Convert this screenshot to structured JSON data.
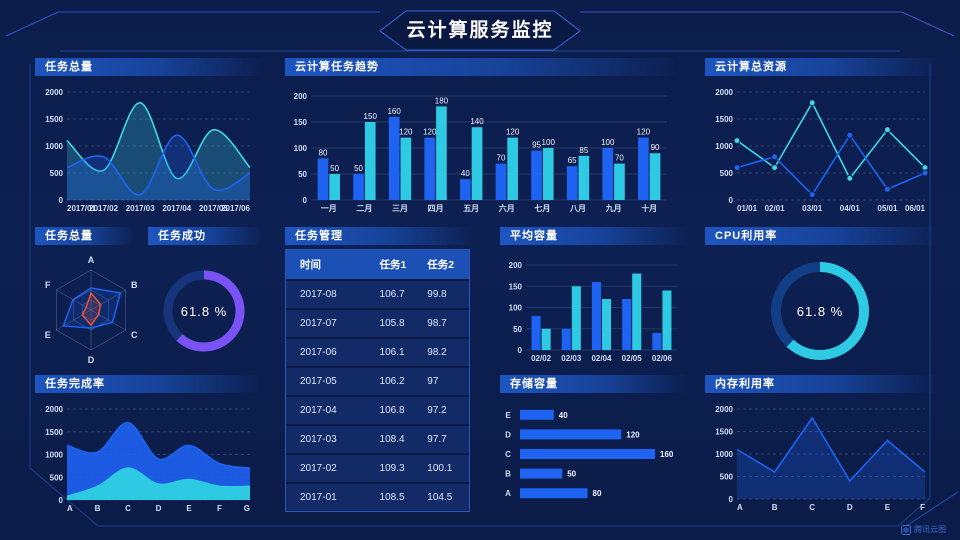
{
  "header": {
    "title": "云计算服务监控"
  },
  "watermark": {
    "label": "腾讯云图"
  },
  "colors": {
    "bg": "#0c1d4b",
    "blue": "#1e63f2",
    "cyan": "#2ec9e2",
    "line_cyan": "#3fd8e8",
    "purple": "#7a52f5",
    "orange": "#ee5330",
    "axis": "#b9c7e8",
    "tick": "#d4def5",
    "grid": "rgba(197,212,244,0.20)",
    "bar_grid": "rgba(170,190,230,0.16)",
    "value_label": "#eef3ff",
    "donut_track_purple": "#17357c",
    "donut_track_cyan": "#123e85",
    "table_header_bg": "#1c50b4",
    "table_row_bg": "#122b66",
    "frame_line": "#2b5cd8",
    "frame_line_purple": "#5b50d6"
  },
  "panels": {
    "tasks_total": {
      "title": "任务总量"
    },
    "task_trend": {
      "title": "云计算任务趋势"
    },
    "cloud_resources": {
      "title": "云计算总资源"
    },
    "tasks_radar": {
      "title": "任务总量"
    },
    "task_success": {
      "title": "任务成功"
    },
    "task_mgmt": {
      "title": "任务管理"
    },
    "avg_capacity": {
      "title": "平均容量"
    },
    "cpu_usage": {
      "title": "CPU利用率"
    },
    "completion_rate": {
      "title": "任务完成率"
    },
    "storage": {
      "title": "存储容量"
    },
    "memory": {
      "title": "内存利用率"
    }
  },
  "table": {
    "columns": [
      "时间",
      "任务1",
      "任务2"
    ],
    "rows": [
      [
        "2017-08",
        "106.7",
        "99.8"
      ],
      [
        "2017-07",
        "105.8",
        "98.7"
      ],
      [
        "2017-06",
        "106.1",
        "98.2"
      ],
      [
        "2017-05",
        "106.2",
        "97"
      ],
      [
        "2017-04",
        "106.8",
        "97.2"
      ],
      [
        "2017-03",
        "108.4",
        "97.7"
      ],
      [
        "2017-02",
        "109.3",
        "100.1"
      ],
      [
        "2017-01",
        "108.5",
        "104.5"
      ]
    ]
  },
  "chart_data": [
    {
      "id": "tasks_total_line",
      "type": "line",
      "title": "任务总量",
      "x": [
        "2017/01",
        "2017/02",
        "2017/03",
        "2017/04",
        "2017/05",
        "2017/06"
      ],
      "ylim": [
        0,
        2000
      ],
      "yticks": [
        0,
        500,
        1000,
        1500,
        2000
      ],
      "grid": "dashed",
      "series": [
        {
          "name": "series-cyan",
          "color": "line_cyan",
          "values": [
            1100,
            550,
            1800,
            400,
            1300,
            600
          ],
          "smooth": true,
          "area": true,
          "fill_opacity": 0.25
        },
        {
          "name": "series-blue",
          "color": "blue",
          "values": [
            600,
            800,
            100,
            1200,
            200,
            500
          ],
          "smooth": true,
          "area": true,
          "fill_opacity": 0.25
        }
      ]
    },
    {
      "id": "task_trend_bars",
      "type": "bar",
      "title": "云计算任务趋势",
      "categories": [
        "一月",
        "二月",
        "三月",
        "四月",
        "五月",
        "六月",
        "七月",
        "八月",
        "九月",
        "十月"
      ],
      "ylim": [
        0,
        200
      ],
      "yticks": [
        0,
        50,
        100,
        150,
        200
      ],
      "labels": true,
      "series": [
        {
          "name": "任务1",
          "color": "blue",
          "values": [
            80,
            50,
            160,
            120,
            40,
            70,
            95,
            65,
            100,
            120
          ]
        },
        {
          "name": "任务2",
          "color": "cyan",
          "values": [
            50,
            150,
            120,
            180,
            140,
            120,
            100,
            85,
            70,
            90
          ]
        }
      ]
    },
    {
      "id": "cloud_resources_line",
      "type": "line",
      "title": "云计算总资源",
      "x": [
        "01/01",
        "02/01",
        "03/01",
        "04/01",
        "05/01",
        "06/01"
      ],
      "ylim": [
        0,
        2000
      ],
      "yticks": [
        0,
        500,
        1000,
        1500,
        2000
      ],
      "grid": "dashed",
      "series": [
        {
          "name": "series-cyan",
          "color": "line_cyan",
          "values": [
            1100,
            600,
            1800,
            400,
            1300,
            600
          ],
          "markers": true
        },
        {
          "name": "series-blue",
          "color": "blue",
          "values": [
            600,
            800,
            100,
            1200,
            200,
            500
          ],
          "markers": true
        }
      ]
    },
    {
      "id": "tasks_radar",
      "type": "radar",
      "title": "任务总量",
      "axes": [
        "A",
        "B",
        "C",
        "D",
        "E",
        "F"
      ],
      "max": 100,
      "series": [
        {
          "name": "blue-polygon",
          "color": "blue",
          "values": [
            55,
            85,
            62,
            45,
            80,
            52
          ]
        },
        {
          "name": "orange-polygon",
          "color": "orange",
          "values": [
            42,
            28,
            22,
            38,
            25,
            14
          ]
        }
      ]
    },
    {
      "id": "task_success_donut",
      "type": "donut",
      "title": "任务成功",
      "value": 61.8,
      "label": "61.8 %",
      "color": "purple",
      "track": "donut_track_purple",
      "radius": 36,
      "stroke_width": 9
    },
    {
      "id": "avg_capacity_bars",
      "type": "bar",
      "title": "平均容量",
      "categories": [
        "02/02",
        "02/03",
        "02/04",
        "02/05",
        "02/06"
      ],
      "ylim": [
        0,
        200
      ],
      "yticks": [
        0,
        50,
        100,
        150,
        200
      ],
      "labels": false,
      "series": [
        {
          "name": "series-blue",
          "color": "blue",
          "values": [
            80,
            50,
            160,
            120,
            40
          ]
        },
        {
          "name": "series-cyan",
          "color": "cyan",
          "values": [
            50,
            150,
            120,
            180,
            140
          ]
        }
      ]
    },
    {
      "id": "cpu_donut",
      "type": "donut",
      "title": "CPU利用率",
      "value": 61.8,
      "label": "61.8 %",
      "color": "cyan",
      "track": "donut_track_cyan",
      "radius": 44,
      "stroke_width": 10
    },
    {
      "id": "completion_area",
      "type": "line",
      "title": "任务完成率",
      "x": [
        "A",
        "B",
        "C",
        "D",
        "E",
        "F",
        "G"
      ],
      "ylim": [
        0,
        2000
      ],
      "yticks": [
        0,
        500,
        1000,
        1500,
        2000
      ],
      "grid": "dashed",
      "series": [
        {
          "name": "blue-area",
          "color": "blue",
          "values": [
            1200,
            1050,
            1700,
            900,
            1200,
            800,
            700
          ],
          "smooth": true,
          "area": true,
          "fill_opacity": 0.9
        },
        {
          "name": "cyan-area",
          "color": "cyan",
          "values": [
            80,
            300,
            700,
            350,
            450,
            300,
            300
          ],
          "smooth": true,
          "area": true,
          "fill_opacity": 1
        }
      ]
    },
    {
      "id": "storage_hbars",
      "type": "hbar",
      "title": "存储容量",
      "categories": [
        "A",
        "B",
        "C",
        "D",
        "E"
      ],
      "values": [
        80,
        50,
        160,
        120,
        40
      ],
      "xmax": 160,
      "color": "blue",
      "labels": true
    },
    {
      "id": "memory_line",
      "type": "line",
      "title": "内存利用率",
      "x": [
        "A",
        "B",
        "C",
        "D",
        "E",
        "F"
      ],
      "ylim": [
        0,
        2000
      ],
      "yticks": [
        0,
        500,
        1000,
        1500,
        2000
      ],
      "grid": "dashed",
      "series": [
        {
          "name": "series-blue",
          "color": "blue",
          "values": [
            1100,
            600,
            1800,
            400,
            1300,
            600
          ],
          "area": true,
          "fill_opacity": 0.25
        }
      ]
    }
  ]
}
